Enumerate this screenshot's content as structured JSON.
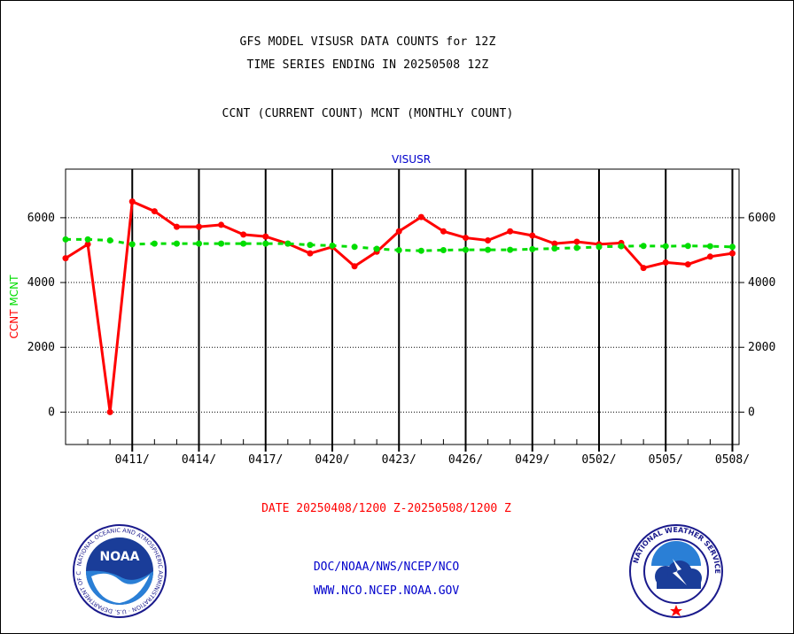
{
  "header": {
    "line1": "GFS MODEL VISUSR DATA COUNTS for 12Z",
    "line2": "TIME SERIES ENDING IN 20250508 12Z",
    "line3": "CCNT (CURRENT COUNT) MCNT (MONTHLY COUNT)"
  },
  "footer": {
    "date_range": "DATE 20250408/1200 Z-20250508/1200 Z",
    "agency": "DOC/NOAA/NWS/NCEP/NCO",
    "website": "WWW.NCO.NCEP.NOAA.GOV"
  },
  "logos": {
    "noaa": {
      "text": "NOAA",
      "ring_text": "NATIONAL OCEANIC AND ATMOSPHERIC ADMINISTRATION · U.S. DEPARTMENT OF COMMERCE"
    },
    "nws": {
      "ring_text": "NATIONAL WEATHER SERVICE"
    }
  },
  "colors": {
    "ccnt": "#ff0000",
    "mcnt": "#00dd00",
    "title": "#0000cc",
    "date": "#ff0000"
  },
  "chart_data": {
    "type": "line",
    "title": "VISUSR",
    "ylabel_series": [
      "CCNT",
      "MCNT"
    ],
    "ylim": [
      -1000,
      7500
    ],
    "yticks": [
      0,
      2000,
      4000,
      6000
    ],
    "xlim": [
      0,
      30.3
    ],
    "x_tick_labels": [
      "0411/",
      "0414/",
      "0417/",
      "0420/",
      "0423/",
      "0426/",
      "0429/",
      "0502/",
      "0505/",
      "0508/"
    ],
    "x_tick_days": [
      3,
      6,
      9,
      12,
      15,
      18,
      21,
      24,
      27,
      30
    ],
    "grid": true,
    "series": [
      {
        "name": "CCNT",
        "color": "#ff0000",
        "x": [
          0,
          1,
          2,
          3,
          4,
          5,
          6,
          7,
          8,
          9,
          10,
          11,
          12,
          13,
          14,
          15,
          16,
          17,
          18,
          19,
          20,
          21,
          22,
          23,
          24,
          25,
          26,
          27,
          28,
          29,
          30
        ],
        "values": [
          4750,
          5180,
          0,
          6500,
          6200,
          5720,
          5720,
          5780,
          5480,
          5420,
          5200,
          4900,
          5100,
          4500,
          4950,
          5580,
          6020,
          5580,
          5380,
          5300,
          5580,
          5450,
          5200,
          5260,
          5180,
          5220,
          4450,
          4620,
          4560,
          4800,
          4900
        ]
      },
      {
        "name": "MCNT",
        "color": "#00dd00",
        "x": [
          0,
          1,
          2,
          3,
          4,
          5,
          6,
          7,
          8,
          9,
          10,
          11,
          12,
          13,
          14,
          15,
          16,
          17,
          18,
          19,
          20,
          21,
          22,
          23,
          24,
          25,
          26,
          27,
          28,
          29,
          30
        ],
        "values": [
          5330,
          5330,
          5300,
          5180,
          5200,
          5200,
          5200,
          5200,
          5200,
          5200,
          5200,
          5160,
          5140,
          5100,
          5040,
          5000,
          4980,
          5000,
          5010,
          5010,
          5010,
          5030,
          5050,
          5070,
          5100,
          5120,
          5130,
          5120,
          5130,
          5120,
          5100
        ]
      }
    ]
  }
}
